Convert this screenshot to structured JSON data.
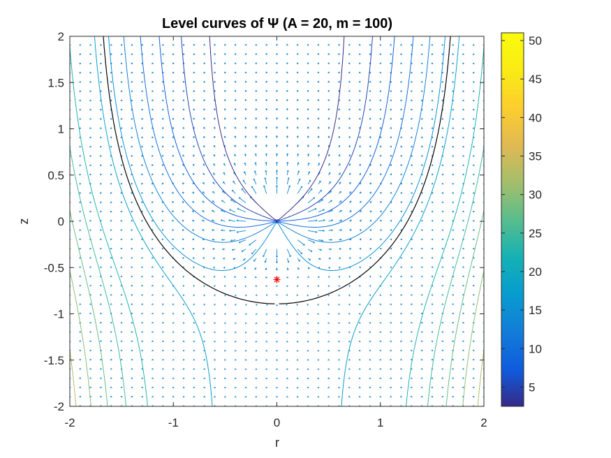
{
  "chart_data": {
    "type": "contour",
    "title": "Level curves of Ψ (A = 20, m = 100)",
    "xlabel": "r",
    "ylabel": "z",
    "xlim": [
      -2,
      2
    ],
    "ylim": [
      -2,
      2
    ],
    "x_ticks": [
      "-2",
      "-1",
      "0",
      "1",
      "2"
    ],
    "y_ticks": [
      "2",
      "1.5",
      "1",
      "0.5",
      "0",
      "-0.5",
      "-1",
      "-1.5",
      "-2"
    ],
    "colorbar": {
      "range": [
        2.5,
        51
      ],
      "ticks": [
        "50",
        "45",
        "40",
        "35",
        "30",
        "25",
        "20",
        "15",
        "10",
        "5"
      ],
      "colormap": "parula"
    },
    "source_point": {
      "r": 0,
      "z": 0
    },
    "stagnation_point": {
      "r": 0,
      "z": -0.63,
      "marker": "*",
      "color": "#ff0000"
    },
    "separatrix": {
      "color": "#000000",
      "psi": 20
    },
    "params": {
      "A": 20,
      "m": 100
    },
    "quiver": true,
    "grid": false
  }
}
